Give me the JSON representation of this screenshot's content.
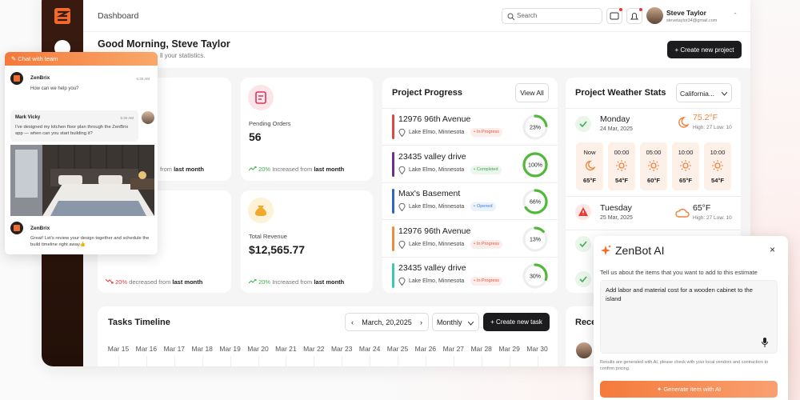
{
  "header": {
    "title": "Dashboard",
    "search": "Search",
    "user": {
      "name": "Steve Taylor",
      "email": "stevetaylor34@gmail.com"
    }
  },
  "greeting": {
    "title": "Good Morning, Steve Taylor",
    "subtitle": "ll your statistics.",
    "button": "+ Create new project"
  },
  "stats": [
    {
      "note": "from",
      "period": "last month"
    },
    {
      "label": "Pending Orders",
      "value": "56",
      "change": "20%",
      "note": "Increased from",
      "period": "last month"
    },
    {
      "change": "20%",
      "note": "decreased from",
      "period": "last month"
    },
    {
      "label": "Total Revenue",
      "value": "$12,565.77",
      "change": "20%",
      "note": "Increased from",
      "period": "last month"
    }
  ],
  "project_progress": {
    "title": "Project Progress",
    "button": "View All",
    "projects": [
      {
        "name": "12976 96th Avenue",
        "location": "Lake Elmo, Minnesota",
        "status": "In Progress",
        "status_color": "#e5533d",
        "color": "#e0483f",
        "progress": {
          "value": 23,
          "label": "23%"
        }
      },
      {
        "name": "23435 valley drive",
        "location": "Lake Elmo, Minnesota",
        "status": "Completed",
        "status_color": "#3fa34d",
        "color": "#6b2f8f",
        "progress": {
          "value": 100,
          "label": "100%"
        }
      },
      {
        "name": "Max's Basement",
        "location": "Lake Elmo, Minnesota",
        "status": "Opened",
        "status_color": "#3b7fd9",
        "color": "#2f63c9",
        "progress": {
          "value": 66,
          "label": "66%"
        }
      },
      {
        "name": "12976 96th Avenue",
        "location": "Lake Elmo, Minnesota",
        "status": "In Progress",
        "status_color": "#e5533d",
        "color": "#f08a3c",
        "progress": {
          "value": 13,
          "label": "13%"
        }
      },
      {
        "name": "23435 valley drive",
        "location": "Lake Elmo, Minnesota",
        "status": "In Progress",
        "status_color": "#e5533d",
        "color": "#3cc7b4",
        "progress": {
          "value": 30,
          "label": "30%"
        }
      }
    ]
  },
  "weather": {
    "title": "Project Weather Stats",
    "location": "California...",
    "days": [
      {
        "day": "Monday",
        "date": "24 Mar, 2025",
        "temp": "75.2°F",
        "range": "High: 27 Low: 10",
        "hours": [
          {
            "time": "Now",
            "temp": "65°F"
          },
          {
            "time": "00:00",
            "temp": "54°F"
          },
          {
            "time": "05:00",
            "temp": "60°F"
          },
          {
            "time": "10:00",
            "temp": "65°F"
          },
          {
            "time": "10:00",
            "temp": "54°F"
          }
        ]
      },
      {
        "day": "Tuesday",
        "date": "25 Mar, 2025",
        "temp": "65°F",
        "range": "High: 27 Low: 10"
      }
    ]
  },
  "tasks": {
    "title": "Tasks Timeline",
    "date": "March, 20,2025",
    "view": "Monthly",
    "button": "+ Create new task",
    "dates": [
      "Mar 15",
      "Mar 16",
      "Mar 17",
      "Mar 18",
      "Mar 19",
      "Mar 20",
      "Mar 21",
      "Mar 22",
      "Mar 23",
      "Mar 24",
      "Mar 25",
      "Mar 26",
      "Mar 27",
      "Mar 28",
      "Mar 29",
      "Mar 30"
    ]
  },
  "recent": {
    "title": "Rece"
  },
  "chat": {
    "title": "Chat with team",
    "messages": [
      {
        "sender": "ZenBrix",
        "time": "5:30 AM",
        "text": "How can we help you?"
      },
      {
        "sender": "Mark Vicky",
        "time": "5:30 AM",
        "text": "I've designed my kitchen floor plan through the ZenBrix app — when can you start building it?"
      },
      {
        "sender": "ZenBrix",
        "text": "Great! Let's review your design together and schedule the build timeline right away👍"
      }
    ]
  },
  "zenbot": {
    "title": "ZenBot AI",
    "prompt": "Tell us about the items that you want to add to this estimate",
    "input": "Add labor and material cost for a wooden cabinet to the island",
    "note": "Results are generated with AI, please check with your local vendors and contractors to confirm pricing.",
    "button": "Generate item with AI"
  }
}
